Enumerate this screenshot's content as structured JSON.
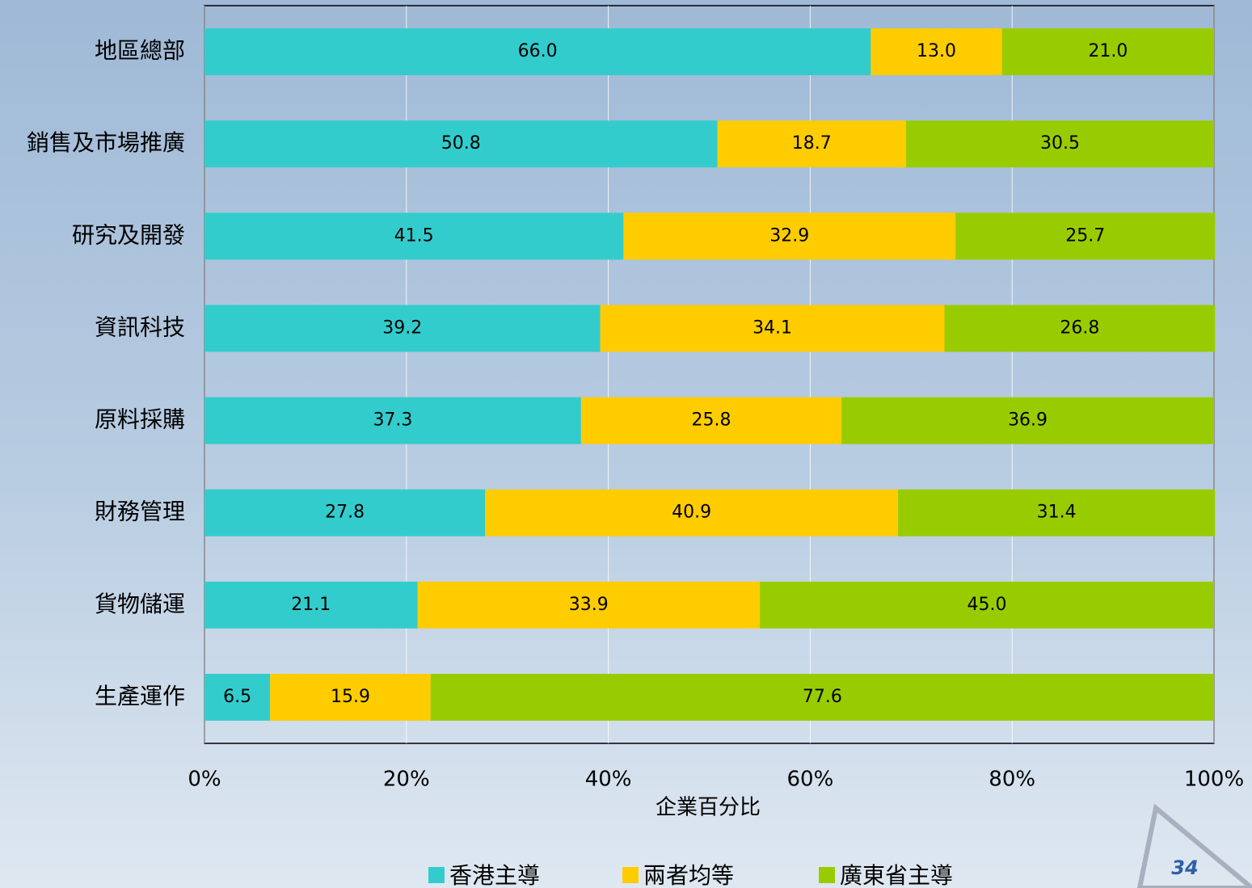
{
  "chart_data": {
    "type": "stacked_barh",
    "categories": [
      "地區總部",
      "銷售及市場推廣",
      "研究及開發",
      "資訊科技",
      "原料採購",
      "財務管理",
      "貨物儲運",
      "生產運作"
    ],
    "series": [
      {
        "name": "香港主導",
        "color": "#33cccc",
        "values": [
          66.0,
          50.8,
          41.5,
          39.2,
          37.3,
          27.8,
          21.1,
          6.5
        ],
        "value_labels": [
          "66.0",
          "50.8",
          "41.5",
          "39.2",
          "37.3",
          "27.8",
          "21.1",
          "6.5"
        ]
      },
      {
        "name": "兩者均等",
        "color": "#ffcc00",
        "values": [
          13.0,
          18.7,
          32.9,
          34.1,
          25.8,
          40.9,
          33.9,
          15.9
        ],
        "value_labels": [
          "13.0",
          "18.7",
          "32.9",
          "34.1",
          "25.8",
          "40.9",
          "33.9",
          "15.9"
        ]
      },
      {
        "name": "廣東省主導",
        "color": "#99cc00",
        "values": [
          21.0,
          30.5,
          25.7,
          26.8,
          36.9,
          31.4,
          45.0,
          77.6
        ],
        "value_labels": [
          "21.0",
          "30.5",
          "25.7",
          "26.8",
          "36.9",
          "31.4",
          "45.0",
          "77.6"
        ]
      }
    ],
    "xlabel": "企業百分比",
    "xlim": [
      0,
      100
    ],
    "xticks": [
      {
        "value": 0,
        "label": "0%"
      },
      {
        "value": 20,
        "label": "20%"
      },
      {
        "value": 40,
        "label": "40%"
      },
      {
        "value": 60,
        "label": "60%"
      },
      {
        "value": 80,
        "label": "80%"
      },
      {
        "value": 100,
        "label": "100%"
      }
    ],
    "grid": true,
    "legend": "bottom"
  },
  "page_number": "34"
}
